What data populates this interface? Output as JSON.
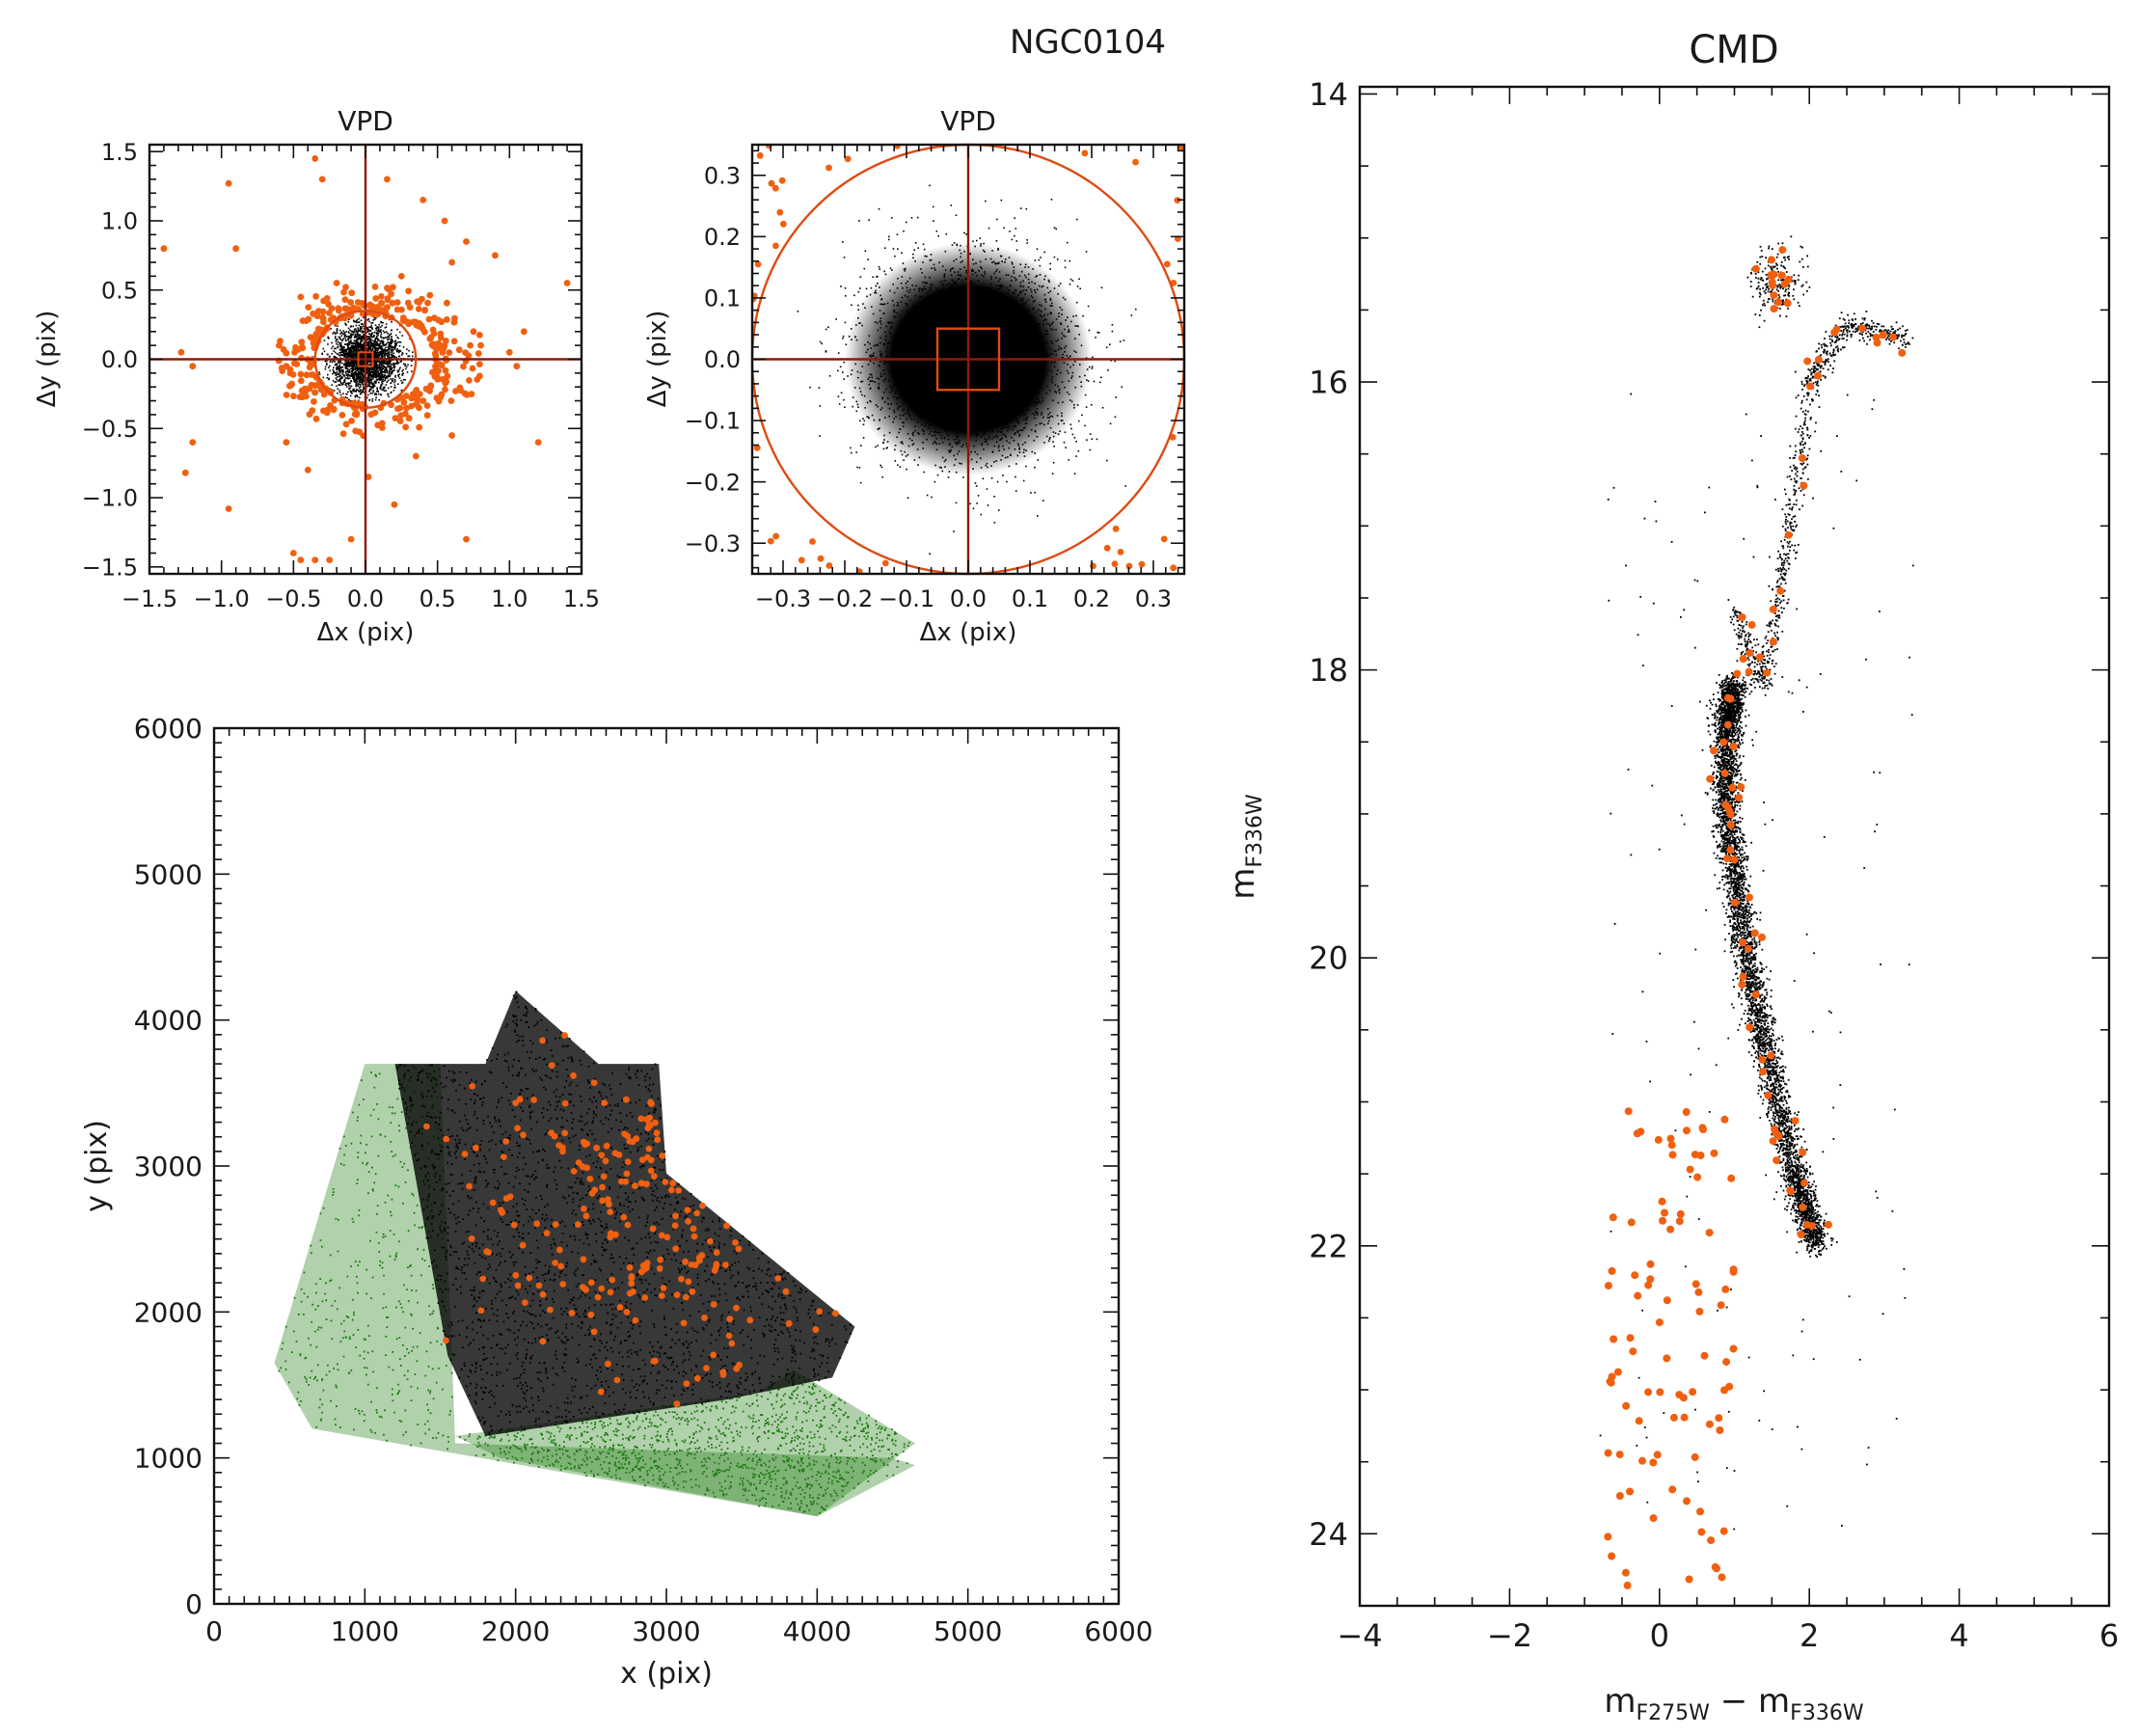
{
  "figure_title": "NGC0104",
  "colors": {
    "orange": "#f06010",
    "dark_red": "#8b1a0a",
    "circle_red": "#e04a10",
    "black": "#000000",
    "green": "#1f7a12"
  },
  "chart_data": [
    {
      "id": "vpd_wide",
      "type": "scatter",
      "title": "VPD",
      "xlabel": "Δx (pix)",
      "ylabel": "Δy (pix)",
      "xlim": [
        -1.5,
        1.5
      ],
      "ylim": [
        -1.55,
        1.55
      ],
      "xticks": [
        -1.5,
        -1.0,
        -0.5,
        0.0,
        0.5,
        1.0,
        1.5
      ],
      "yticks": [
        -1.5,
        -1.0,
        -0.5,
        0.0,
        0.5,
        1.0,
        1.5
      ],
      "xtick_labels": [
        "−1.5",
        "−1.0",
        "−0.5",
        "0.0",
        "0.5",
        "1.0",
        "1.5"
      ],
      "ytick_labels": [
        "−1.5",
        "−1.0",
        "−0.5",
        "0.0",
        "0.5",
        "1.0",
        "1.5"
      ],
      "selection_circle_radius": 0.35,
      "inner_box_halfwidth": 0.05,
      "series": [
        {
          "color": "black",
          "distribution": "gaussian core",
          "center": [
            0,
            0
          ],
          "sigma": 0.12,
          "clip_radius": 0.36
        },
        {
          "color": "orange",
          "distribution": "outliers outside circle",
          "points": [
            [
              -1.4,
              0.8
            ],
            [
              -1.28,
              0.05
            ],
            [
              -1.2,
              -0.05
            ],
            [
              -1.2,
              -0.6
            ],
            [
              -1.25,
              -0.82
            ],
            [
              -0.95,
              1.27
            ],
            [
              -0.9,
              0.8
            ],
            [
              -0.95,
              -1.08
            ],
            [
              -0.6,
              0.1
            ],
            [
              -0.55,
              -0.05
            ],
            [
              -0.45,
              0.45
            ],
            [
              -0.35,
              1.45
            ],
            [
              -0.3,
              1.3
            ],
            [
              -0.5,
              -1.4
            ],
            [
              -0.45,
              -1.45
            ],
            [
              -0.35,
              -1.45
            ],
            [
              -0.25,
              -1.45
            ],
            [
              -0.1,
              -1.3
            ],
            [
              0.02,
              -0.85
            ],
            [
              0.15,
              1.3
            ],
            [
              0.2,
              -1.05
            ],
            [
              0.4,
              1.15
            ],
            [
              0.55,
              1.0
            ],
            [
              0.6,
              0.7
            ],
            [
              0.7,
              0.85
            ],
            [
              0.7,
              -1.3
            ],
            [
              0.9,
              0.75
            ],
            [
              1.0,
              0.05
            ],
            [
              1.05,
              -0.05
            ],
            [
              1.1,
              0.2
            ],
            [
              1.2,
              -0.6
            ],
            [
              1.4,
              0.55
            ],
            [
              0.75,
              0.2
            ],
            [
              0.8,
              0.1
            ],
            [
              -0.4,
              -0.8
            ],
            [
              0.35,
              -0.7
            ],
            [
              -0.2,
              0.55
            ],
            [
              0.25,
              0.6
            ],
            [
              0.6,
              -0.55
            ],
            [
              -0.55,
              -0.6
            ]
          ],
          "ring": {
            "inner": 0.36,
            "outer": 0.62,
            "count": 330
          }
        }
      ]
    },
    {
      "id": "vpd_zoom",
      "type": "scatter",
      "title": "VPD",
      "xlabel": "Δx (pix)",
      "ylabel": "Δy (pix)",
      "xlim": [
        -0.35,
        0.35
      ],
      "ylim": [
        -0.35,
        0.35
      ],
      "xticks": [
        -0.3,
        -0.2,
        -0.1,
        0.0,
        0.1,
        0.2,
        0.3
      ],
      "yticks": [
        -0.3,
        -0.2,
        -0.1,
        0.0,
        0.1,
        0.2,
        0.3
      ],
      "xtick_labels": [
        "−0.3",
        "−0.2",
        "−0.1",
        "0.0",
        "0.1",
        "0.2",
        "0.3"
      ],
      "ytick_labels": [
        "−0.3",
        "−0.2",
        "−0.1",
        "0.0",
        "0.1",
        "0.2",
        "0.3"
      ],
      "selection_circle_radius": 0.35,
      "inner_box_halfwidth": 0.05,
      "series": [
        {
          "color": "black",
          "distribution": "gaussian core",
          "center": [
            0,
            0
          ],
          "sigma": 0.085,
          "clip_radius": 0.35
        },
        {
          "color": "orange",
          "distribution": "outside circle",
          "count": 40
        }
      ]
    },
    {
      "id": "xy_map",
      "type": "scatter",
      "xlabel": "x (pix)",
      "ylabel": "y (pix)",
      "xlim": [
        0,
        6000
      ],
      "ylim": [
        0,
        6000
      ],
      "xticks": [
        0,
        1000,
        2000,
        3000,
        4000,
        5000,
        6000
      ],
      "yticks": [
        0,
        1000,
        2000,
        3000,
        4000,
        5000,
        6000
      ],
      "xtick_labels": [
        "0",
        "1000",
        "2000",
        "3000",
        "4000",
        "5000",
        "6000"
      ],
      "ytick_labels": [
        "0",
        "1000",
        "2000",
        "3000",
        "4000",
        "5000",
        "6000"
      ],
      "series": [
        {
          "color": "green",
          "region": [
            [
              1000,
              3700
            ],
            [
              1500,
              3700
            ],
            [
              1600,
              1100
            ],
            [
              4500,
              1000
            ],
            [
              4650,
              950
            ],
            [
              4000,
              600
            ],
            [
              650,
              1200
            ],
            [
              400,
              1650
            ]
          ]
        },
        {
          "color": "green",
          "region": [
            [
              1600,
              1150
            ],
            [
              3600,
              1450
            ],
            [
              3850,
              1600
            ],
            [
              4650,
              1100
            ],
            [
              4000,
              600
            ],
            [
              1900,
              1000
            ]
          ]
        },
        {
          "color": "black",
          "region": [
            [
              1200,
              3700
            ],
            [
              1800,
              3700
            ],
            [
              2000,
              4200
            ],
            [
              2550,
              3700
            ],
            [
              2950,
              3700
            ],
            [
              3000,
              2950
            ],
            [
              4250,
              1900
            ],
            [
              4100,
              1550
            ],
            [
              3400,
              1400
            ],
            [
              1800,
              1150
            ],
            [
              1550,
              1700
            ]
          ]
        },
        {
          "color": "orange",
          "cluster_center": [
            2900,
            2750
          ],
          "count": 280
        }
      ]
    },
    {
      "id": "cmd",
      "type": "scatter",
      "title": "CMD",
      "xlabel": "m_F275W − m_F336W",
      "ylabel": "m_F336W",
      "xlim": [
        -4,
        6
      ],
      "ylim": [
        24.5,
        13.95
      ],
      "xticks": [
        -4,
        -2,
        0,
        2,
        4,
        6
      ],
      "yticks": [
        14,
        16,
        18,
        20,
        22,
        24
      ],
      "xtick_labels": [
        "−4",
        "−2",
        "0",
        "2",
        "4",
        "6"
      ],
      "ytick_labels": [
        "14",
        "16",
        "18",
        "20",
        "22",
        "24"
      ],
      "series": [
        {
          "color": "black",
          "feature": "main sequence",
          "path": [
            [
              1.0,
              18.1
            ],
            [
              0.9,
              18.4
            ],
            [
              0.9,
              19.0
            ],
            [
              1.1,
              19.8
            ],
            [
              1.4,
              20.6
            ],
            [
              1.8,
              21.5
            ],
            [
              2.1,
              22.0
            ]
          ]
        },
        {
          "color": "black",
          "feature": "subgiant and red giant branch",
          "path": [
            [
              1.0,
              17.6
            ],
            [
              1.4,
              18.1
            ],
            [
              1.7,
              17.2
            ],
            [
              2.0,
              16.0
            ],
            [
              2.5,
              15.6
            ],
            [
              3.3,
              15.7
            ]
          ]
        },
        {
          "color": "black",
          "feature": "red clump",
          "center": [
            1.6,
            15.3
          ]
        },
        {
          "color": "orange",
          "count": 180
        }
      ]
    }
  ]
}
